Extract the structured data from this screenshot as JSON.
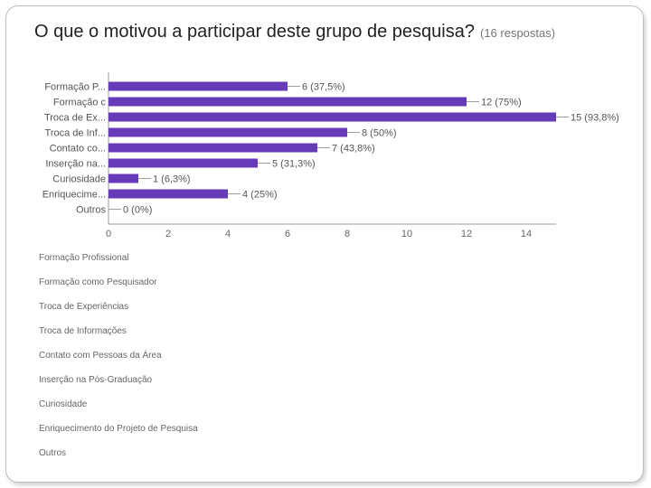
{
  "title": "O que o motivou a participar deste grupo de pesquisa?",
  "subtitle": "(16 respostas)",
  "chart_data": {
    "type": "bar",
    "orientation": "horizontal",
    "categories": [
      "Formação P...",
      "Formação c",
      "Troca de Ex...",
      "Troca de Inf...",
      "Contato co...",
      "Inserção na...",
      "Curiosidade",
      "Enriquecime...",
      "Outros"
    ],
    "values": [
      6,
      12,
      15,
      8,
      7,
      5,
      1,
      4,
      0
    ],
    "value_labels": [
      "6 (37,5%)",
      "12 (75%)",
      "15 (93,8%)",
      "8 (50%)",
      "7 (43,8%)",
      "5 (31,3%)",
      "1 (6,3%)",
      "4 (25%)",
      "0 (0%)"
    ],
    "xticks": [
      "0",
      "2",
      "4",
      "6",
      "8",
      "10",
      "12",
      "14"
    ],
    "xlim": [
      0,
      15
    ],
    "grid": false,
    "bar_color": "#673ab7"
  },
  "legend_items": [
    "Formação Profissional",
    "Formação como Pesquisador",
    "Troca de Experiências",
    "Troca de Informações",
    "Contato com Pessoas da Área",
    "Inserção na Pós-Graduação",
    "Curiosidade",
    "Enriquecimento do Projeto de Pesquisa",
    "Outros"
  ]
}
